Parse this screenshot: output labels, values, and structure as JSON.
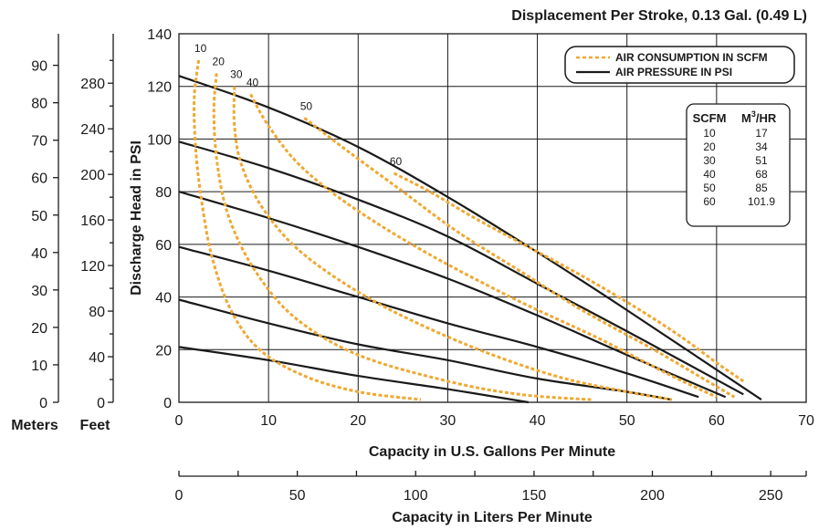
{
  "chart_data": {
    "type": "line",
    "title": "Displacement Per Stroke, 0.13 Gal. (0.49 L)",
    "xlabel": "Capacity in U.S. Gallons Per Minute",
    "ylabel": "Discharge Head in PSI",
    "xlim": [
      0,
      70
    ],
    "ylim": [
      0,
      140
    ],
    "x_ticks": [
      "0",
      "10",
      "20",
      "30",
      "40",
      "50",
      "60",
      "70"
    ],
    "y_ticks": [
      "0",
      "20",
      "40",
      "60",
      "80",
      "100",
      "120",
      "140"
    ],
    "grid": true,
    "secondary_x_axis": {
      "label": "Capacity in Liters Per Minute",
      "ticks": [
        "0",
        "50",
        "100",
        "150",
        "200",
        "250"
      ],
      "tick_values": [
        0,
        50,
        100,
        150,
        200,
        250
      ],
      "minor_values": [
        25,
        75,
        125,
        175,
        225
      ]
    },
    "secondary_y_axes": [
      {
        "label": "Feet",
        "ticks": [
          "0",
          "40",
          "80",
          "120",
          "160",
          "200",
          "240",
          "280"
        ],
        "tick_values": [
          0,
          40,
          80,
          120,
          160,
          200,
          240,
          280
        ],
        "minor_values": [
          20,
          60,
          100,
          140,
          180,
          220,
          260,
          300
        ]
      },
      {
        "label": "Meters",
        "ticks": [
          "0",
          "10",
          "20",
          "30",
          "40",
          "50",
          "60",
          "70",
          "80",
          "90"
        ],
        "tick_values": [
          0,
          10,
          20,
          30,
          40,
          50,
          60,
          70,
          80,
          90
        ]
      }
    ],
    "legend": {
      "position": "top-right",
      "entries": [
        {
          "label": "AIR CONSUMPTION IN SCFM",
          "style": "dashed",
          "color": "#f0a830"
        },
        {
          "label": "AIR PRESSURE IN PSI",
          "style": "solid",
          "color": "#1a1a1a"
        }
      ]
    },
    "conversion_table": {
      "headers": [
        "SCFM",
        "M",
        "3",
        "/HR"
      ],
      "rows": [
        [
          "10",
          "17"
        ],
        [
          "20",
          "34"
        ],
        [
          "30",
          "51"
        ],
        [
          "40",
          "68"
        ],
        [
          "50",
          "85"
        ],
        [
          "60",
          "101.9"
        ]
      ]
    },
    "series": [
      {
        "label": "",
        "style": "solid",
        "color": "#1a1a1a",
        "points": [
          [
            0,
            21
          ],
          [
            10,
            16
          ],
          [
            20,
            10
          ],
          [
            30,
            5
          ],
          [
            39,
            0
          ]
        ]
      },
      {
        "label": "",
        "style": "solid",
        "color": "#1a1a1a",
        "points": [
          [
            0,
            39
          ],
          [
            10,
            30
          ],
          [
            20,
            22
          ],
          [
            30,
            16
          ],
          [
            40,
            9
          ],
          [
            50,
            4
          ],
          [
            55,
            1
          ]
        ]
      },
      {
        "label": "",
        "style": "solid",
        "color": "#1a1a1a",
        "points": [
          [
            0,
            59
          ],
          [
            10,
            50
          ],
          [
            20,
            40
          ],
          [
            30,
            30
          ],
          [
            40,
            21
          ],
          [
            50,
            11
          ],
          [
            58,
            2
          ]
        ]
      },
      {
        "label": "",
        "style": "solid",
        "color": "#1a1a1a",
        "points": [
          [
            0,
            80
          ],
          [
            10,
            70
          ],
          [
            20,
            59
          ],
          [
            30,
            47
          ],
          [
            40,
            33
          ],
          [
            50,
            18
          ],
          [
            61,
            2
          ]
        ]
      },
      {
        "label": "",
        "style": "solid",
        "color": "#1a1a1a",
        "points": [
          [
            0,
            99
          ],
          [
            10,
            89
          ],
          [
            20,
            77
          ],
          [
            30,
            63
          ],
          [
            40,
            45
          ],
          [
            50,
            27
          ],
          [
            63,
            3
          ]
        ]
      },
      {
        "label": "",
        "style": "solid",
        "color": "#1a1a1a",
        "points": [
          [
            0,
            124
          ],
          [
            10,
            112
          ],
          [
            20,
            97
          ],
          [
            30,
            78
          ],
          [
            40,
            57
          ],
          [
            50,
            35
          ],
          [
            65,
            1
          ]
        ]
      },
      {
        "label": "10",
        "style": "dashed",
        "color": "#f0a830",
        "points": [
          [
            2.2,
            130
          ],
          [
            1.7,
            115
          ],
          [
            1.9,
            95
          ],
          [
            2.6,
            75
          ],
          [
            3.7,
            55
          ],
          [
            5.8,
            35
          ],
          [
            9,
            20
          ],
          [
            14,
            10
          ],
          [
            20,
            4
          ],
          [
            27,
            1
          ]
        ]
      },
      {
        "label": "20",
        "style": "dashed",
        "color": "#f0a830",
        "points": [
          [
            4.2,
            125
          ],
          [
            3.9,
            110
          ],
          [
            4.3,
            90
          ],
          [
            5.6,
            70
          ],
          [
            8.5,
            50
          ],
          [
            13,
            32
          ],
          [
            20,
            18
          ],
          [
            30,
            8
          ],
          [
            38,
            3
          ],
          [
            46,
            1
          ]
        ]
      },
      {
        "label": "30",
        "style": "dashed",
        "color": "#f0a830",
        "points": [
          [
            6.2,
            120
          ],
          [
            6.2,
            105
          ],
          [
            7,
            90
          ],
          [
            9.5,
            73
          ],
          [
            14,
            56
          ],
          [
            22,
            38
          ],
          [
            32,
            22
          ],
          [
            42,
            10
          ],
          [
            50,
            4
          ],
          [
            55,
            1
          ]
        ]
      },
      {
        "label": "40",
        "style": "dashed",
        "color": "#f0a830",
        "points": [
          [
            8,
            117
          ],
          [
            10,
            105
          ],
          [
            13.5,
            90
          ],
          [
            19,
            75
          ],
          [
            27,
            58
          ],
          [
            37,
            40
          ],
          [
            47,
            24
          ],
          [
            55,
            10
          ],
          [
            60,
            2
          ]
        ]
      },
      {
        "label": "50",
        "style": "dashed",
        "color": "#f0a830",
        "points": [
          [
            14,
            108
          ],
          [
            19,
            95
          ],
          [
            25,
            80
          ],
          [
            31,
            65
          ],
          [
            38,
            50
          ],
          [
            45,
            35
          ],
          [
            53,
            20
          ],
          [
            58,
            10
          ],
          [
            62,
            2
          ]
        ]
      },
      {
        "label": "60",
        "style": "dashed",
        "color": "#f0a830",
        "points": [
          [
            24,
            87
          ],
          [
            28,
            80
          ],
          [
            33,
            70
          ],
          [
            39,
            59
          ],
          [
            45,
            48
          ],
          [
            51,
            36
          ],
          [
            56,
            25
          ],
          [
            60,
            15
          ],
          [
            63,
            8
          ]
        ]
      }
    ]
  }
}
